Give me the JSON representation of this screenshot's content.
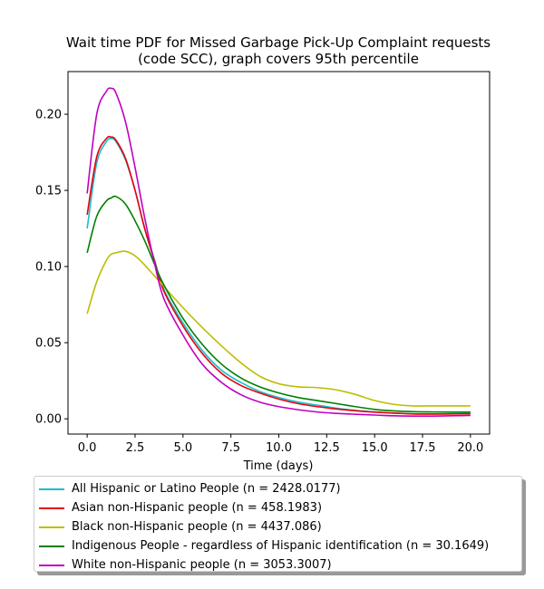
{
  "chart_data": {
    "type": "line",
    "title": "Wait time PDF for Missed Garbage Pick-Up Complaint  requests",
    "subtitle": "(code SCC), graph covers 95th percentile",
    "xlabel": "Time (days)",
    "ylabel": "",
    "xlim": [
      -1.0,
      21.0
    ],
    "ylim": [
      -0.01,
      0.228
    ],
    "xticks": [
      0.0,
      2.5,
      5.0,
      7.5,
      10.0,
      12.5,
      15.0,
      17.5,
      20.0
    ],
    "xtick_labels": [
      "0.0",
      "2.5",
      "5.0",
      "7.5",
      "10.0",
      "12.5",
      "15.0",
      "17.5",
      "20.0"
    ],
    "yticks": [
      0.0,
      0.05,
      0.1,
      0.15,
      0.2
    ],
    "ytick_labels": [
      "0.00",
      "0.05",
      "0.10",
      "0.15",
      "0.20"
    ],
    "grid": false,
    "legend_position": "below",
    "x": [
      0,
      0.5,
      1.0,
      1.25,
      1.5,
      2.0,
      2.5,
      3.0,
      3.5,
      4.0,
      5.0,
      6.0,
      7.0,
      8.0,
      9.0,
      10.0,
      11.0,
      12.0,
      13.0,
      14.0,
      15.0,
      16.0,
      17.0,
      18.0,
      19.0,
      20.0
    ],
    "series": [
      {
        "name": "All Hispanic or Latino People (n = 2428.0177)",
        "color": "#17becf",
        "values": [
          0.125,
          0.168,
          0.182,
          0.184,
          0.182,
          0.17,
          0.15,
          0.125,
          0.105,
          0.085,
          0.063,
          0.045,
          0.032,
          0.024,
          0.018,
          0.014,
          0.011,
          0.009,
          0.007,
          0.0055,
          0.0045,
          0.0038,
          0.0033,
          0.0032,
          0.0033,
          0.0034
        ]
      },
      {
        "name": "Asian non-Hispanic people (n = 458.1983)",
        "color": "#e8000b",
        "values": [
          0.134,
          0.172,
          0.184,
          0.185,
          0.183,
          0.171,
          0.15,
          0.125,
          0.104,
          0.084,
          0.061,
          0.043,
          0.03,
          0.022,
          0.017,
          0.013,
          0.01,
          0.008,
          0.0065,
          0.0053,
          0.0044,
          0.0037,
          0.0032,
          0.0031,
          0.0032,
          0.0033
        ]
      },
      {
        "name": "Black non-Hispanic people (n = 4437.086)",
        "color": "#bcbd00",
        "values": [
          0.069,
          0.09,
          0.104,
          0.108,
          0.109,
          0.11,
          0.107,
          0.101,
          0.094,
          0.087,
          0.073,
          0.06,
          0.048,
          0.037,
          0.028,
          0.023,
          0.021,
          0.0205,
          0.019,
          0.016,
          0.012,
          0.0095,
          0.0085,
          0.0085,
          0.0085,
          0.0085
        ]
      },
      {
        "name": "Indigenous People - regardless of Hispanic identification (n = 30.1649)",
        "color": "#008000",
        "values": [
          0.109,
          0.133,
          0.143,
          0.145,
          0.146,
          0.141,
          0.13,
          0.117,
          0.102,
          0.088,
          0.066,
          0.049,
          0.036,
          0.027,
          0.021,
          0.017,
          0.014,
          0.012,
          0.01,
          0.008,
          0.0062,
          0.0052,
          0.0047,
          0.0045,
          0.0044,
          0.0044
        ]
      },
      {
        "name": "White non-Hispanic people (n = 3053.3007)",
        "color": "#c000c0",
        "values": [
          0.148,
          0.2,
          0.215,
          0.217,
          0.214,
          0.195,
          0.165,
          0.132,
          0.103,
          0.079,
          0.055,
          0.036,
          0.024,
          0.016,
          0.011,
          0.008,
          0.006,
          0.0045,
          0.0036,
          0.003,
          0.0025,
          0.002,
          0.0018,
          0.0018,
          0.002,
          0.0022
        ]
      }
    ]
  }
}
